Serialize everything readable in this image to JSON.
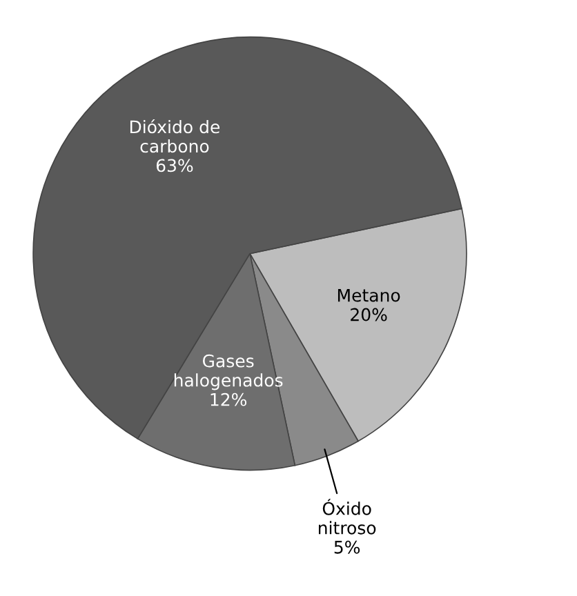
{
  "chart_data": {
    "type": "pie",
    "categories": [
      "Metano",
      "Óxido nitroso",
      "Gases halogenados",
      "Dióxido de carbono"
    ],
    "values": [
      20,
      5,
      12,
      63
    ],
    "value_labels": [
      "20%",
      "5%",
      "12%",
      "63%"
    ],
    "colors": [
      "#bdbdbd",
      "#8a8a8a",
      "#6e6e6e",
      "#595959"
    ]
  }
}
